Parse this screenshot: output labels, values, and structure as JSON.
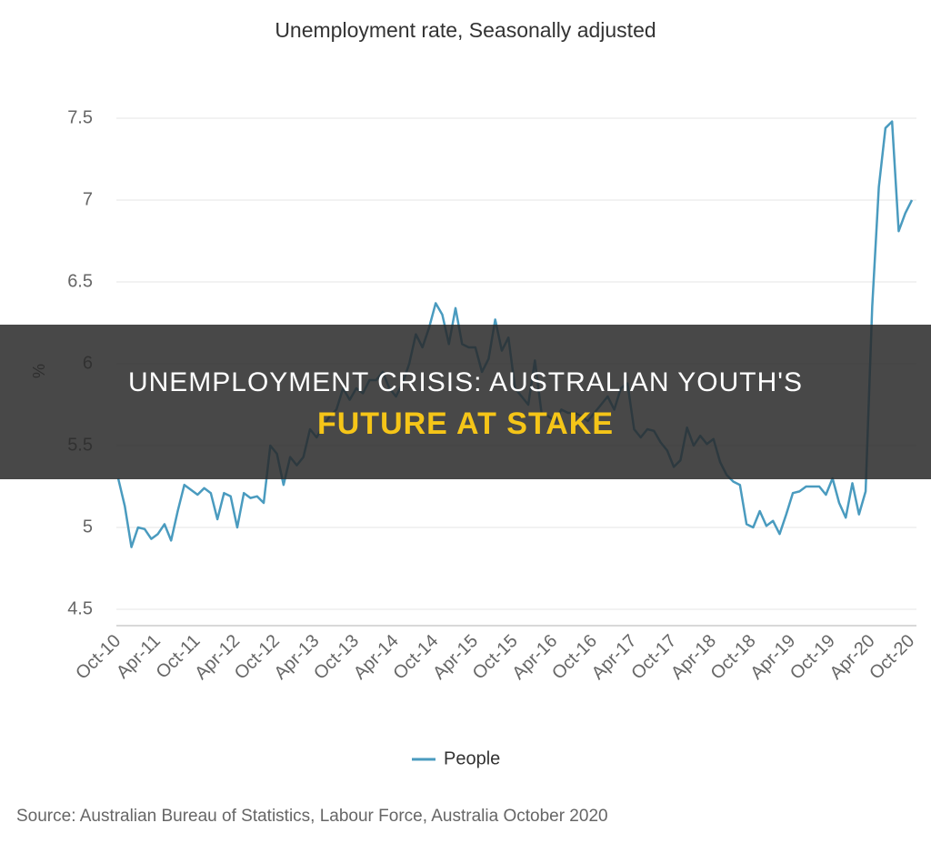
{
  "chart_data": {
    "type": "line",
    "title": "Unemployment rate, Seasonally adjusted",
    "y_label": "%",
    "source": "Source: Australian Bureau of Statistics, Labour Force, Australia October 2020",
    "categories": [
      "Oct-10",
      null,
      null,
      null,
      null,
      null,
      "Apr-11",
      null,
      null,
      null,
      null,
      null,
      "Oct-11",
      null,
      null,
      null,
      null,
      null,
      "Apr-12",
      null,
      null,
      null,
      null,
      null,
      "Oct-12",
      null,
      null,
      null,
      null,
      null,
      "Apr-13",
      null,
      null,
      null,
      null,
      null,
      "Oct-13",
      null,
      null,
      null,
      null,
      null,
      "Apr-14",
      null,
      null,
      null,
      null,
      null,
      "Oct-14",
      null,
      null,
      null,
      null,
      null,
      "Apr-15",
      null,
      null,
      null,
      null,
      null,
      "Oct-15",
      null,
      null,
      null,
      null,
      null,
      "Apr-16",
      null,
      null,
      null,
      null,
      null,
      "Oct-16",
      null,
      null,
      null,
      null,
      null,
      "Apr-17",
      null,
      null,
      null,
      null,
      null,
      "Oct-17",
      null,
      null,
      null,
      null,
      null,
      "Apr-18",
      null,
      null,
      null,
      null,
      null,
      "Oct-18",
      null,
      null,
      null,
      null,
      null,
      "Apr-19",
      null,
      null,
      null,
      null,
      null,
      "Oct-19",
      null,
      null,
      null,
      null,
      null,
      "Apr-20",
      null,
      null,
      null,
      null,
      null,
      "Oct-20"
    ],
    "series": [
      {
        "name": "People",
        "color": "#4a9bbf",
        "values": [
          5.3,
          5.13,
          4.88,
          5.0,
          4.99,
          4.93,
          4.96,
          5.02,
          4.92,
          5.1,
          5.26,
          5.23,
          5.2,
          5.24,
          5.21,
          5.05,
          5.21,
          5.19,
          5.0,
          5.21,
          5.18,
          5.19,
          5.15,
          5.5,
          5.45,
          5.26,
          5.43,
          5.38,
          5.43,
          5.6,
          5.55,
          5.62,
          5.68,
          5.72,
          5.85,
          5.78,
          5.85,
          5.82,
          5.9,
          5.9,
          5.95,
          5.85,
          5.8,
          5.88,
          6.0,
          6.18,
          6.1,
          6.22,
          6.37,
          6.3,
          6.12,
          6.34,
          6.12,
          6.1,
          6.1,
          5.95,
          6.03,
          6.27,
          6.08,
          6.16,
          5.85,
          5.8,
          5.75,
          6.02,
          5.7,
          5.68,
          5.65,
          5.72,
          5.7,
          5.7,
          5.68,
          5.65,
          5.7,
          5.75,
          5.8,
          5.72,
          5.85,
          5.88,
          5.6,
          5.55,
          5.6,
          5.59,
          5.52,
          5.47,
          5.37,
          5.41,
          5.61,
          5.5,
          5.56,
          5.51,
          5.54,
          5.4,
          5.32,
          5.28,
          5.26,
          5.02,
          5.0,
          5.1,
          5.01,
          5.04,
          4.96,
          5.08,
          5.21,
          5.22,
          5.25,
          5.25,
          5.25,
          5.2,
          5.3,
          5.15,
          5.06,
          5.27,
          5.08,
          5.22,
          6.35,
          7.08,
          7.44,
          7.48,
          6.81,
          6.92,
          7.0
        ]
      }
    ],
    "ylim": [
      4.4,
      7.6
    ],
    "yticks": [
      4.5,
      5,
      5.5,
      6,
      6.5,
      7,
      7.5
    ],
    "grid": true,
    "legend": "bottom"
  },
  "overlay": {
    "line1": "UNEMPLOYMENT CRISIS: AUSTRALIAN YOUTH'S",
    "line2": "FUTURE AT STAKE"
  }
}
